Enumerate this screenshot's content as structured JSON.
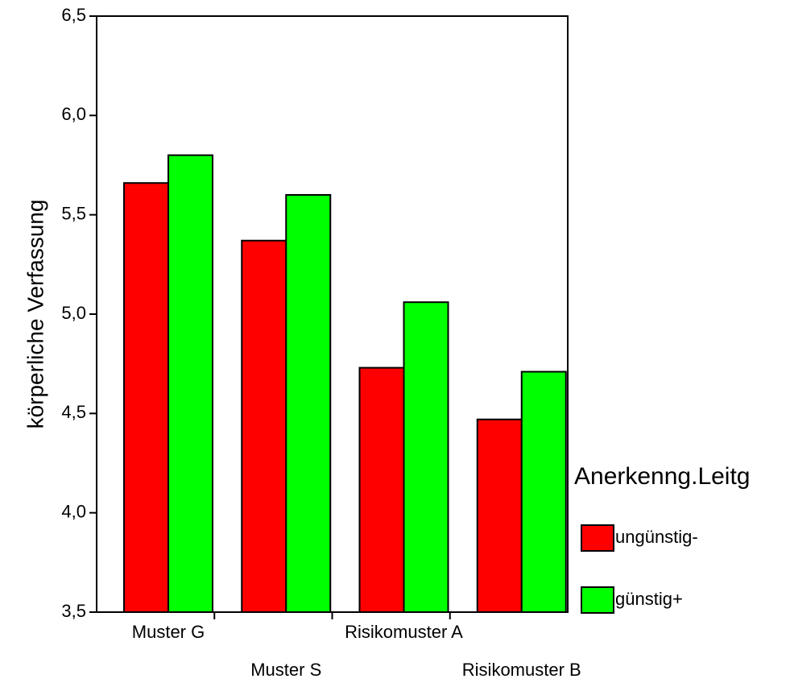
{
  "chart_data": {
    "type": "bar",
    "title": "",
    "xlabel": "",
    "ylabel": "körperliche Verfassung",
    "ylim": [
      3.5,
      6.5
    ],
    "yticks": [
      "3,5",
      "4,0",
      "4,5",
      "5,0",
      "5,5",
      "6,0",
      "6,5"
    ],
    "ytick_values": [
      3.5,
      4.0,
      4.5,
      5.0,
      5.5,
      6.0,
      6.5
    ],
    "categories": [
      "Muster G",
      "Muster S",
      "Risikomuster A",
      "Risikomuster B"
    ],
    "series": [
      {
        "name": "ungünstig-",
        "color": "#ff0000",
        "values": [
          5.66,
          5.37,
          4.73,
          4.47
        ]
      },
      {
        "name": "günstig+",
        "color": "#00ff00",
        "values": [
          5.8,
          5.6,
          5.06,
          4.71
        ]
      }
    ],
    "legend": {
      "title": "Anerkenng.Leitg",
      "placement": "right"
    },
    "grid": false
  }
}
